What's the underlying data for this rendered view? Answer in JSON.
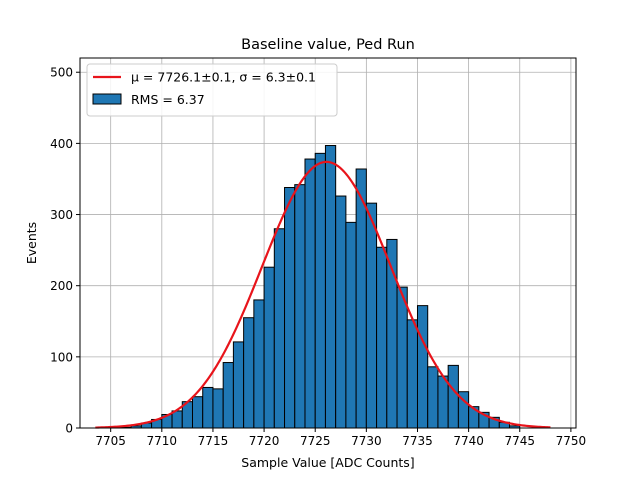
{
  "chart_data": {
    "type": "bar",
    "title": "Baseline value, Ped Run",
    "xlabel": "Sample Value [ADC Counts]",
    "ylabel": "Events",
    "xlim": [
      7702,
      7750.5
    ],
    "ylim": [
      0,
      520
    ],
    "xticks": [
      7705,
      7710,
      7715,
      7720,
      7725,
      7730,
      7735,
      7740,
      7745,
      7750
    ],
    "yticks": [
      0,
      100,
      200,
      300,
      400,
      500
    ],
    "grid": true,
    "legend_position": "top-left",
    "bin_width": 1,
    "bins_start": [
      7705,
      7706,
      7707,
      7708,
      7709,
      7710,
      7711,
      7712,
      7713,
      7714,
      7715,
      7716,
      7717,
      7718,
      7719,
      7720,
      7721,
      7722,
      7723,
      7724,
      7725,
      7726,
      7727,
      7728,
      7729,
      7730,
      7731,
      7732,
      7733,
      7734,
      7735,
      7736,
      7737,
      7738,
      7739,
      7740,
      7741,
      7742,
      7743,
      7744
    ],
    "counts": [
      1,
      1,
      3,
      7,
      12,
      19,
      24,
      37,
      44,
      57,
      55,
      92,
      121,
      155,
      180,
      226,
      280,
      338,
      342,
      378,
      386,
      397,
      326,
      289,
      364,
      316,
      254,
      265,
      198,
      152,
      172,
      86,
      73,
      88,
      51,
      30,
      22,
      15,
      8,
      3
    ],
    "histogram": {
      "name": "RMS = 6.37",
      "color": "#1f77b4",
      "edge_color": "#000000"
    },
    "fit": {
      "name": "μ = 7726.1±0.1, σ = 6.3±0.1",
      "type": "gaussian",
      "mu": 7726.1,
      "sigma": 6.3,
      "amplitude": 374,
      "x_range": [
        7703.5,
        7748
      ],
      "color": "#e8141b"
    }
  }
}
